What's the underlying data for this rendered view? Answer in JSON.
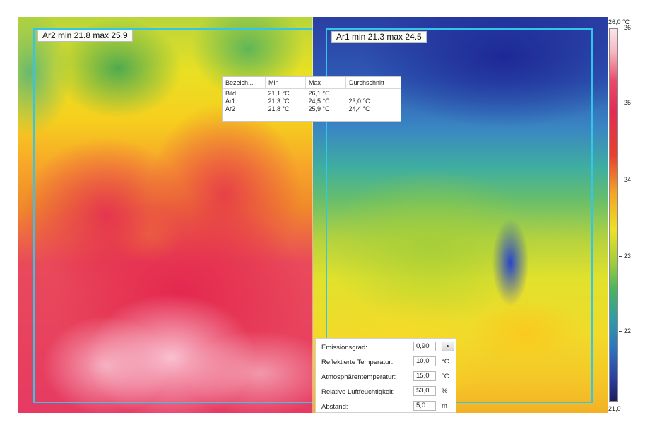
{
  "areas": {
    "ar2_label": "Ar2 min 21.8 max 25.9",
    "ar1_label": "Ar1 min 21.3 max 24.5"
  },
  "stats_table": {
    "headers": [
      "Bezeich...",
      "Min",
      "Max",
      "Durchschnitt"
    ],
    "rows": [
      [
        "Bild",
        "21,1 °C",
        "26,1 °C",
        ""
      ],
      [
        "Ar1",
        "21,3 °C",
        "24,5 °C",
        "23,0 °C"
      ],
      [
        "Ar2",
        "21,8 °C",
        "25,9 °C",
        "24,4 °C"
      ]
    ]
  },
  "parameters": [
    {
      "label": "Emissionsgrad:",
      "value": "0,90",
      "unit": ""
    },
    {
      "label": "Reflektierte Temperatur:",
      "value": "10,0",
      "unit": "°C"
    },
    {
      "label": "Atmosphärentemperatur:",
      "value": "15,0",
      "unit": "°C"
    },
    {
      "label": "Relative Luftfeuchtigkeit:",
      "value": "53,0",
      "unit": "%"
    },
    {
      "label": "Abstand:",
      "value": "5,0",
      "unit": "m"
    }
  ],
  "param_button": "▸",
  "scale": {
    "max_label": "26,0 °C",
    "top_value": "26",
    "min_label": "21,0",
    "ticks": [
      "25",
      "24",
      "23",
      "22"
    ]
  }
}
